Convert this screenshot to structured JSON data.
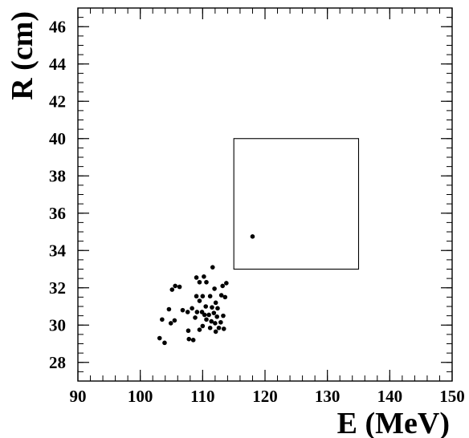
{
  "chart_data": {
    "type": "scatter",
    "xlabel": "E (MeV)",
    "ylabel": "R (cm)",
    "xlim": [
      90,
      150
    ],
    "ylim": [
      27,
      47
    ],
    "x_ticks": [
      90,
      100,
      110,
      120,
      130,
      140,
      150
    ],
    "y_ticks": [
      28,
      30,
      32,
      34,
      36,
      38,
      40,
      42,
      44,
      46
    ],
    "x_minor_step": 2,
    "y_minor_step": 0.5,
    "grid": false,
    "legend": "none",
    "box": {
      "x_min": 115,
      "x_max": 135,
      "y_min": 33,
      "y_max": 40
    },
    "points": [
      {
        "x": 118.0,
        "y": 34.75
      },
      {
        "x": 111.6,
        "y": 33.1
      },
      {
        "x": 109.0,
        "y": 32.55
      },
      {
        "x": 109.5,
        "y": 32.3
      },
      {
        "x": 110.2,
        "y": 32.6
      },
      {
        "x": 110.6,
        "y": 32.3
      },
      {
        "x": 113.8,
        "y": 32.25
      },
      {
        "x": 113.2,
        "y": 32.1
      },
      {
        "x": 105.6,
        "y": 32.1
      },
      {
        "x": 105.1,
        "y": 31.9
      },
      {
        "x": 106.3,
        "y": 32.05
      },
      {
        "x": 111.9,
        "y": 31.95
      },
      {
        "x": 109.0,
        "y": 31.55
      },
      {
        "x": 110.0,
        "y": 31.55
      },
      {
        "x": 111.2,
        "y": 31.55
      },
      {
        "x": 113.0,
        "y": 31.6
      },
      {
        "x": 113.6,
        "y": 31.5
      },
      {
        "x": 109.5,
        "y": 31.3
      },
      {
        "x": 112.1,
        "y": 31.2
      },
      {
        "x": 110.5,
        "y": 31.0
      },
      {
        "x": 111.5,
        "y": 30.95
      },
      {
        "x": 112.4,
        "y": 30.9
      },
      {
        "x": 108.3,
        "y": 30.9
      },
      {
        "x": 104.6,
        "y": 30.85
      },
      {
        "x": 106.8,
        "y": 30.8
      },
      {
        "x": 107.6,
        "y": 30.7
      },
      {
        "x": 109.1,
        "y": 30.7
      },
      {
        "x": 109.9,
        "y": 30.7
      },
      {
        "x": 110.3,
        "y": 30.55
      },
      {
        "x": 111.0,
        "y": 30.55
      },
      {
        "x": 111.8,
        "y": 30.65
      },
      {
        "x": 112.3,
        "y": 30.45
      },
      {
        "x": 113.3,
        "y": 30.5
      },
      {
        "x": 108.8,
        "y": 30.4
      },
      {
        "x": 110.6,
        "y": 30.3
      },
      {
        "x": 111.4,
        "y": 30.2
      },
      {
        "x": 112.0,
        "y": 30.1
      },
      {
        "x": 112.9,
        "y": 30.15
      },
      {
        "x": 103.5,
        "y": 30.3
      },
      {
        "x": 105.5,
        "y": 30.25
      },
      {
        "x": 104.9,
        "y": 30.1
      },
      {
        "x": 110.0,
        "y": 29.95
      },
      {
        "x": 111.2,
        "y": 29.85
      },
      {
        "x": 112.6,
        "y": 29.85
      },
      {
        "x": 113.4,
        "y": 29.8
      },
      {
        "x": 109.5,
        "y": 29.75
      },
      {
        "x": 107.7,
        "y": 29.7
      },
      {
        "x": 112.1,
        "y": 29.65
      },
      {
        "x": 103.1,
        "y": 29.3
      },
      {
        "x": 107.8,
        "y": 29.25
      },
      {
        "x": 108.5,
        "y": 29.2
      },
      {
        "x": 103.9,
        "y": 29.05
      }
    ]
  }
}
